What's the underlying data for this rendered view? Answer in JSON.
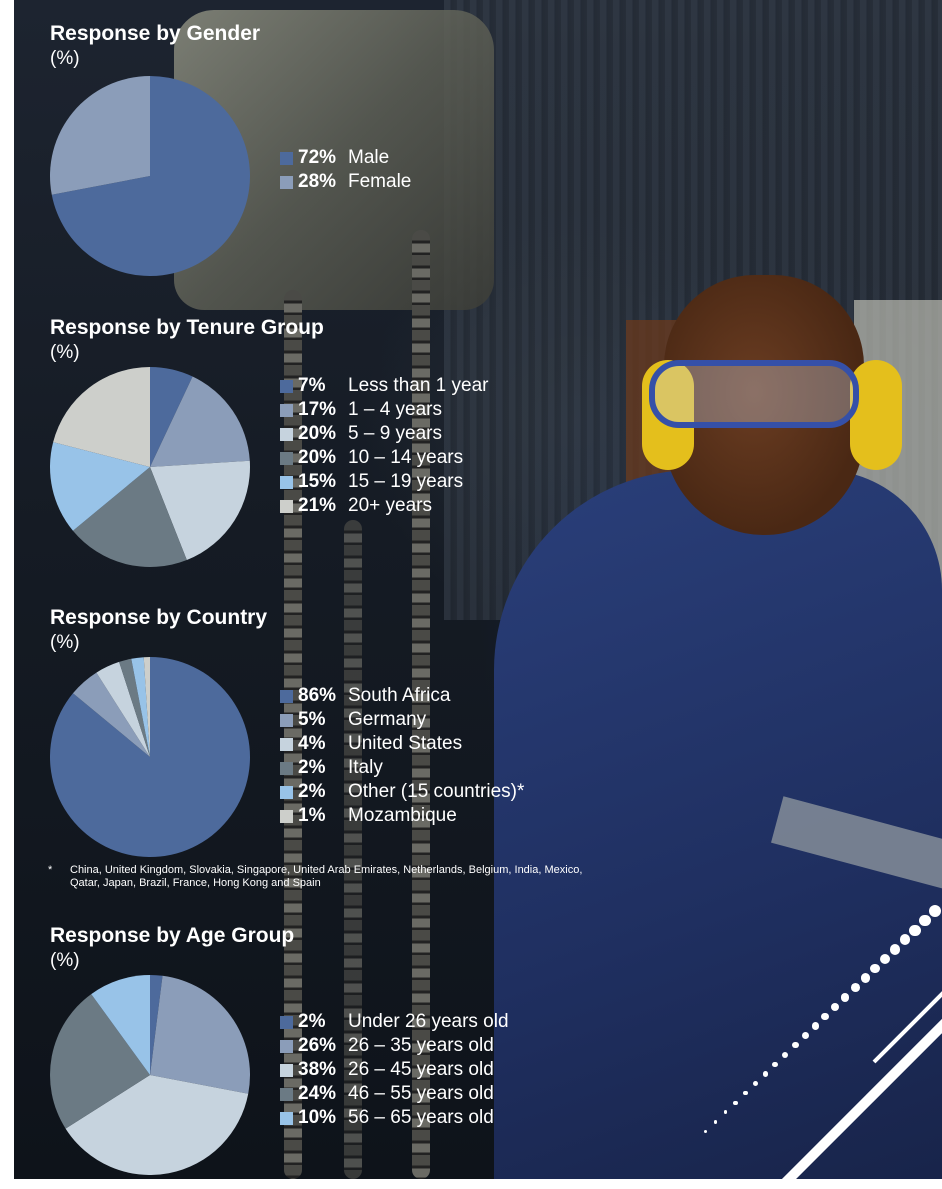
{
  "chart_data": [
    {
      "type": "pie",
      "title": "Response by Gender",
      "unit": "(%)",
      "series": [
        {
          "name": "Male",
          "label": "72%",
          "value": 72,
          "color": "#4d6a9c"
        },
        {
          "name": "Female",
          "label": "28%",
          "value": 28,
          "color": "#8b9db9"
        }
      ]
    },
    {
      "type": "pie",
      "title": "Response by Tenure Group",
      "unit": "(%)",
      "series": [
        {
          "name": "Less than 1 year",
          "label": "7%",
          "value": 7,
          "color": "#4d6a9c"
        },
        {
          "name": "1 – 4 years",
          "label": "17%",
          "value": 17,
          "color": "#8b9db9"
        },
        {
          "name": "5 – 9 years",
          "label": "20%",
          "value": 20,
          "color": "#c6d3de"
        },
        {
          "name": "10 – 14 years",
          "label": "20%",
          "value": 20,
          "color": "#6b7a84"
        },
        {
          "name": "15 – 19 years",
          "label": "15%",
          "value": 15,
          "color": "#98c3e8"
        },
        {
          "name": "20+ years",
          "label": "21%",
          "value": 21,
          "color": "#cdcfcb"
        }
      ]
    },
    {
      "type": "pie",
      "title": "Response by Country",
      "unit": "(%)",
      "series": [
        {
          "name": "South Africa",
          "label": "86%",
          "value": 86,
          "color": "#4d6a9c"
        },
        {
          "name": "Germany",
          "label": "5%",
          "value": 5,
          "color": "#8b9db9"
        },
        {
          "name": "United States",
          "label": "4%",
          "value": 4,
          "color": "#c6d3de"
        },
        {
          "name": "Italy",
          "label": "2%",
          "value": 2,
          "color": "#6b7a84"
        },
        {
          "name": "Other (15 countries)*",
          "label": "2%",
          "value": 2,
          "color": "#98c3e8"
        },
        {
          "name": "Mozambique",
          "label": "1%",
          "value": 1,
          "color": "#cdcfcb"
        }
      ]
    },
    {
      "type": "pie",
      "title": "Response by Age Group",
      "unit": "(%)",
      "series": [
        {
          "name": "Under 26 years old",
          "label": "2%",
          "value": 2,
          "color": "#4d6a9c"
        },
        {
          "name": "26 – 35 years old",
          "label": "26%",
          "value": 26,
          "color": "#8b9db9"
        },
        {
          "name": "26 – 45 years old",
          "label": "38%",
          "value": 38,
          "color": "#c6d3de"
        },
        {
          "name": "46 – 55 years old",
          "label": "24%",
          "value": 24,
          "color": "#6b7a84"
        },
        {
          "name": "56 – 65 years old",
          "label": "10%",
          "value": 10,
          "color": "#98c3e8"
        }
      ]
    }
  ],
  "footnote": {
    "marker": "*",
    "text": "China, United Kingdom, Slovakia, Singapore, United Arab Emirates, Netherlands, Belgium, India, Mexico, Qatar, Japan, Brazil, France, Hong Kong and Spain"
  }
}
